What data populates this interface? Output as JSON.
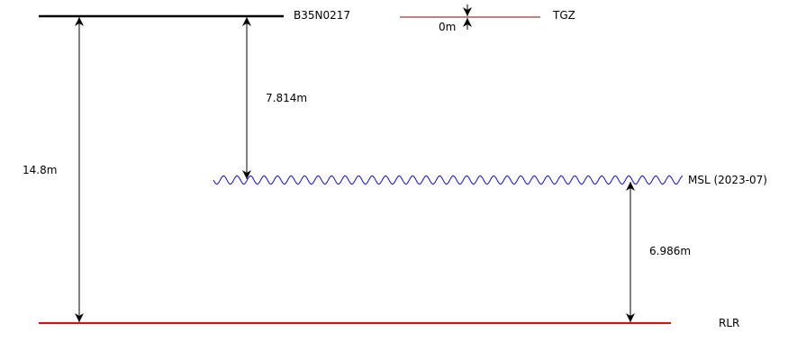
{
  "levels": {
    "benchmark": {
      "label": "B35N0217",
      "color": "#000000"
    },
    "tgz": {
      "label": "TGZ",
      "color": "#8b0000"
    },
    "msl": {
      "label": "MSL (2023-07)",
      "color": "#0000ff"
    },
    "rlr": {
      "label": "RLR",
      "color": "#ff0000"
    }
  },
  "measurements": {
    "benchmark_to_rlr": "14.8m",
    "benchmark_to_msl": "7.814m",
    "msl_to_rlr": "6.986m",
    "tgz_offset": "0m"
  }
}
